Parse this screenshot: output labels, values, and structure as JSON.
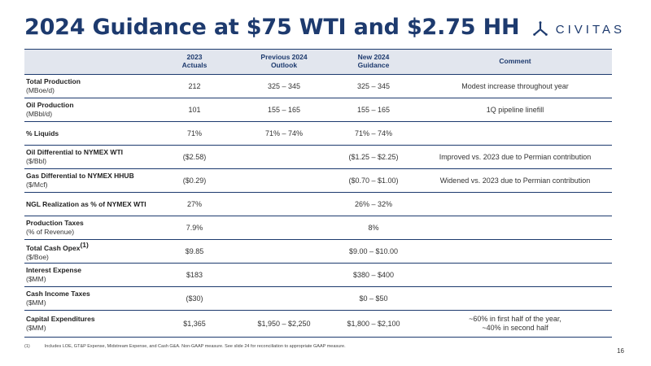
{
  "title": "2024 Guidance at $75 WTI and $2.75 HH",
  "logo": {
    "text": "CIVITAS",
    "icon": "civitas-tri-arrow-logo",
    "color": "#1d3a6e"
  },
  "table": {
    "headers": {
      "label": "",
      "actuals": [
        "2023",
        "Actuals"
      ],
      "previous": [
        "Previous 2024",
        "Outlook"
      ],
      "new": [
        "New 2024",
        "Guidance"
      ],
      "comment": "Comment"
    },
    "rows": [
      {
        "main": "Total Production",
        "sup": "",
        "sub": "(MBoe/d)",
        "actuals": "212",
        "previous": "325 – 345",
        "new": "325 – 345",
        "comment": [
          "Modest increase throughout year"
        ]
      },
      {
        "main": "Oil Production",
        "sup": "",
        "sub": "(MBbl/d)",
        "actuals": "101",
        "previous": "155 – 165",
        "new": "155 – 165",
        "comment": [
          "1Q pipeline linefill"
        ]
      },
      {
        "main": "% Liquids",
        "sup": "",
        "sub": "",
        "actuals": "71%",
        "previous": "71% – 74%",
        "new": "71% – 74%",
        "comment": []
      },
      {
        "main": "Oil Differential to NYMEX WTI",
        "sup": "",
        "sub": "($/Bbl)",
        "actuals": "($2.58)",
        "previous": "",
        "new": "($1.25 – $2.25)",
        "comment": [
          "Improved vs. 2023 due to Permian contribution"
        ]
      },
      {
        "main": "Gas Differential to NYMEX HHUB",
        "sup": "",
        "sub": "($/Mcf)",
        "actuals": "($0.29)",
        "previous": "",
        "new": "($0.70 – $1.00)",
        "comment": [
          "Widened vs. 2023 due to Permian contribution"
        ]
      },
      {
        "main": "NGL Realization as % of NYMEX WTI",
        "sup": "",
        "sub": "",
        "actuals": "27%",
        "previous": "",
        "new": "26% – 32%",
        "comment": []
      },
      {
        "main": "Production Taxes",
        "sup": "",
        "sub": "(% of Revenue)",
        "actuals": "7.9%",
        "previous": "",
        "new": "8%",
        "comment": []
      },
      {
        "main": "Total Cash Opex",
        "sup": "(1)",
        "sub": "($/Boe)",
        "actuals": "$9.85",
        "previous": "",
        "new": "$9.00 – $10.00",
        "comment": []
      },
      {
        "main": "Interest Expense",
        "sup": "",
        "sub": "($MM)",
        "actuals": "$183",
        "previous": "",
        "new": "$380 – $400",
        "comment": []
      },
      {
        "main": "Cash Income Taxes",
        "sup": "",
        "sub": "($MM)",
        "actuals": "($30)",
        "previous": "",
        "new": "$0 – $50",
        "comment": []
      },
      {
        "main": "Capital Expenditures",
        "sup": "",
        "sub": "($MM)",
        "actuals": "$1,365",
        "previous": "$1,950 – $2,250",
        "new": "$1,800 – $2,100",
        "comment": [
          "~60% in first half of the year,",
          "~40% in second half"
        ]
      }
    ]
  },
  "footnote": {
    "marker": "(1)",
    "text": "Includes LOE, GT&P Expense, Midstream Expense, and Cash G&A. Non-GAAP measure. See slide 24 for reconciliation to appropriate GAAP measure."
  },
  "page_number": "16"
}
